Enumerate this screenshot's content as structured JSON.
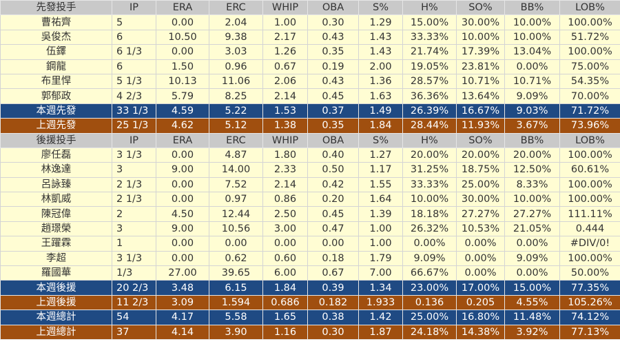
{
  "columns": [
    "IP",
    "ERA",
    "ERC",
    "WHIP",
    "OBA",
    "S%",
    "H%",
    "SO%",
    "BB%",
    "LOB%"
  ],
  "colors": {
    "header": "#c9c9c9",
    "row": "#fffdd3",
    "this_week": "#1f4a83",
    "last_week": "#a04f0f"
  },
  "rows": [
    {
      "type": "hdr",
      "cells": [
        "先發投手",
        "IP",
        "ERA",
        "ERC",
        "WHIP",
        "OBA",
        "S%",
        "H%",
        "SO%",
        "BB%",
        "LOB%"
      ]
    },
    {
      "type": "row",
      "cells": [
        "曹祐齊",
        "5",
        "0.00",
        "2.04",
        "1.00",
        "0.30",
        "1.29",
        "15.00%",
        "30.00%",
        "10.00%",
        "100.00%"
      ]
    },
    {
      "type": "row",
      "cells": [
        "吳俊杰",
        "6",
        "10.50",
        "9.38",
        "2.17",
        "0.43",
        "1.43",
        "33.33%",
        "10.00%",
        "10.00%",
        "51.72%"
      ]
    },
    {
      "type": "row",
      "cells": [
        "伍鐸",
        "6 1/3",
        "0.00",
        "3.03",
        "1.26",
        "0.35",
        "1.43",
        "21.74%",
        "17.39%",
        "13.04%",
        "100.00%"
      ]
    },
    {
      "type": "row",
      "cells": [
        "鋼龍",
        "6",
        "1.50",
        "0.96",
        "0.67",
        "0.19",
        "2.00",
        "19.05%",
        "23.81%",
        "0.00%",
        "75.00%"
      ]
    },
    {
      "type": "row",
      "cells": [
        "布里悍",
        "5 1/3",
        "10.13",
        "11.06",
        "2.06",
        "0.43",
        "1.36",
        "28.57%",
        "10.71%",
        "10.71%",
        "54.35%"
      ]
    },
    {
      "type": "row",
      "cells": [
        "郭郁政",
        "4 2/3",
        "5.79",
        "8.25",
        "2.14",
        "0.45",
        "1.63",
        "36.36%",
        "13.64%",
        "9.09%",
        "70.00%"
      ]
    },
    {
      "type": "blue",
      "cells": [
        "本週先發",
        "33 1/3",
        "4.59",
        "5.22",
        "1.53",
        "0.37",
        "1.49",
        "26.39%",
        "16.67%",
        "9.03%",
        "71.72%"
      ]
    },
    {
      "type": "brown",
      "cells": [
        "上週先發",
        "25 1/3",
        "4.62",
        "5.12",
        "1.38",
        "0.35",
        "1.84",
        "28.44%",
        "11.93%",
        "3.67%",
        "73.96%"
      ]
    },
    {
      "type": "hdr",
      "cells": [
        "後援投手",
        "IP",
        "ERA",
        "ERC",
        "WHIP",
        "OBA",
        "S%",
        "H%",
        "SO%",
        "BB%",
        "LOB%"
      ]
    },
    {
      "type": "row",
      "cells": [
        "廖任磊",
        "3 1/3",
        "0.00",
        "4.87",
        "1.80",
        "0.40",
        "1.27",
        "20.00%",
        "20.00%",
        "20.00%",
        "100.00%"
      ]
    },
    {
      "type": "row",
      "cells": [
        "林逸達",
        "3",
        "9.00",
        "14.00",
        "2.33",
        "0.50",
        "1.17",
        "31.25%",
        "18.75%",
        "12.50%",
        "60.61%"
      ]
    },
    {
      "type": "row",
      "cells": [
        "呂詠臻",
        "2 1/3",
        "0.00",
        "7.52",
        "2.14",
        "0.42",
        "1.55",
        "33.33%",
        "25.00%",
        "8.33%",
        "100.00%"
      ]
    },
    {
      "type": "row",
      "cells": [
        "林凱威",
        "2 1/3",
        "0.00",
        "0.97",
        "0.86",
        "0.20",
        "1.64",
        "10.00%",
        "30.00%",
        "10.00%",
        "100.00%"
      ]
    },
    {
      "type": "row",
      "cells": [
        "陳冠偉",
        "2",
        "4.50",
        "12.44",
        "2.50",
        "0.45",
        "1.39",
        "18.18%",
        "27.27%",
        "27.27%",
        "111.11%"
      ]
    },
    {
      "type": "row",
      "cells": [
        "趙璟榮",
        "3",
        "9.00",
        "10.56",
        "3.00",
        "0.47",
        "1.00",
        "26.32%",
        "10.53%",
        "21.05%",
        "0.444"
      ]
    },
    {
      "type": "row",
      "cells": [
        "王躍霖",
        "1",
        "0.00",
        "0.00",
        "0.00",
        "0.00",
        "1.00",
        "0.00%",
        "0.00%",
        "0.00%",
        "#DIV/0!"
      ]
    },
    {
      "type": "row",
      "cells": [
        "李超",
        "3 1/3",
        "0.00",
        "0.62",
        "0.60",
        "0.18",
        "1.79",
        "9.09%",
        "0.00%",
        "9.09%",
        "100.00%"
      ]
    },
    {
      "type": "row",
      "cells": [
        "羅國華",
        "1/3",
        "27.00",
        "39.65",
        "6.00",
        "0.67",
        "7.00",
        "66.67%",
        "0.00%",
        "0.00%",
        "50.00%"
      ]
    },
    {
      "type": "blue",
      "cells": [
        "本週後援",
        "20 2/3",
        "3.48",
        "6.15",
        "1.84",
        "0.39",
        "1.34",
        "23.00%",
        "17.00%",
        "15.00%",
        "77.35%"
      ]
    },
    {
      "type": "brown",
      "cells": [
        "上週後援",
        "11 2/3",
        "3.09",
        "1.594",
        "0.686",
        "0.182",
        "1.933",
        "0.136",
        "0.205",
        "4.55%",
        "105.26%"
      ]
    },
    {
      "type": "blue",
      "cells": [
        "本週總計",
        "54",
        "4.17",
        "5.58",
        "1.65",
        "0.38",
        "1.42",
        "25.00%",
        "16.80%",
        "11.48%",
        "74.12%"
      ]
    },
    {
      "type": "brown",
      "cells": [
        "上週總計",
        "37",
        "4.14",
        "3.90",
        "1.16",
        "0.30",
        "1.87",
        "24.18%",
        "14.38%",
        "3.92%",
        "77.13%"
      ]
    }
  ]
}
